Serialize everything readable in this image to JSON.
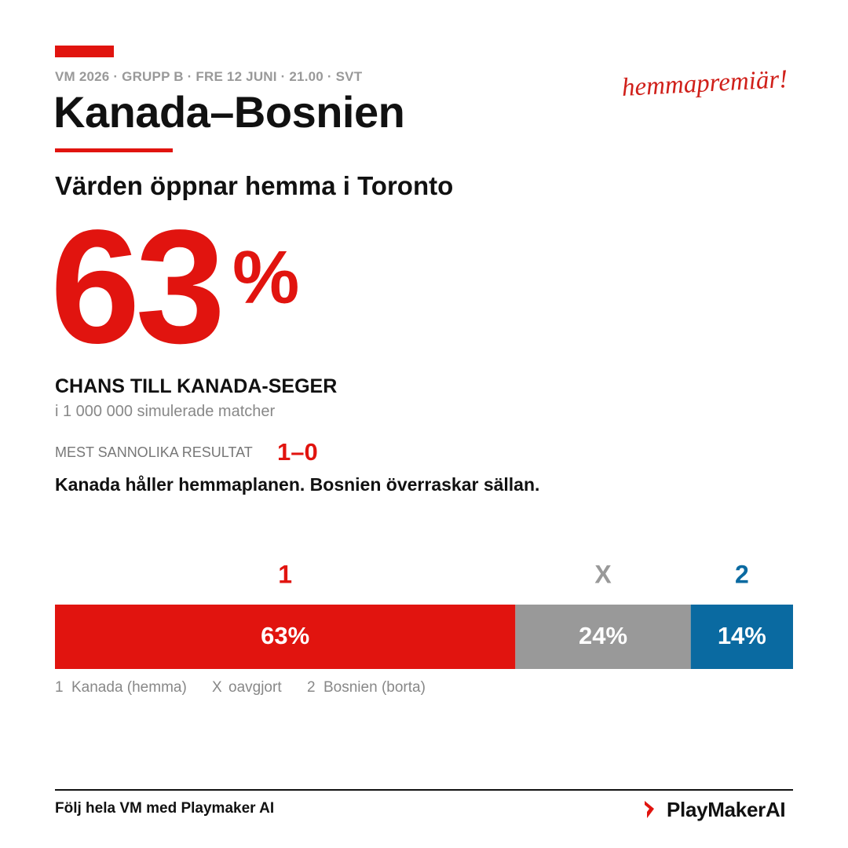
{
  "header": {
    "meta": "VM 2026 · GRUPP B · FRE 12 JUNI · 21.00 · SVT",
    "title": "Kanada–Bosnien",
    "tagline": "hemmapremiär!"
  },
  "subtitle": "Värden öppnar hemma i Toronto",
  "headline": {
    "value": 63,
    "unit": "%",
    "label": "CHANS TILL KANADA-SEGER",
    "note": "i 1 000 000 simulerade matcher"
  },
  "result": {
    "label": "MEST SANNOLIKA RESULTAT",
    "score": "1–0"
  },
  "summary": "Kanada håller hemmaplanen. Bosnien överraskar sällan.",
  "chart_data": {
    "type": "stacked-bar",
    "categories": [
      "1",
      "X",
      "2"
    ],
    "values": [
      63,
      24,
      14
    ],
    "value_labels": [
      "63%",
      "24%",
      "14%"
    ],
    "colors": [
      "#e1140f",
      "#999999",
      "#0a6aa1"
    ],
    "legend": [
      "Kanada (hemma)",
      "oavgjort",
      "Bosnien (borta)"
    ]
  },
  "footer": {
    "text": "Följ hela VM med Playmaker AI",
    "logo": "PlayMakerAI"
  }
}
